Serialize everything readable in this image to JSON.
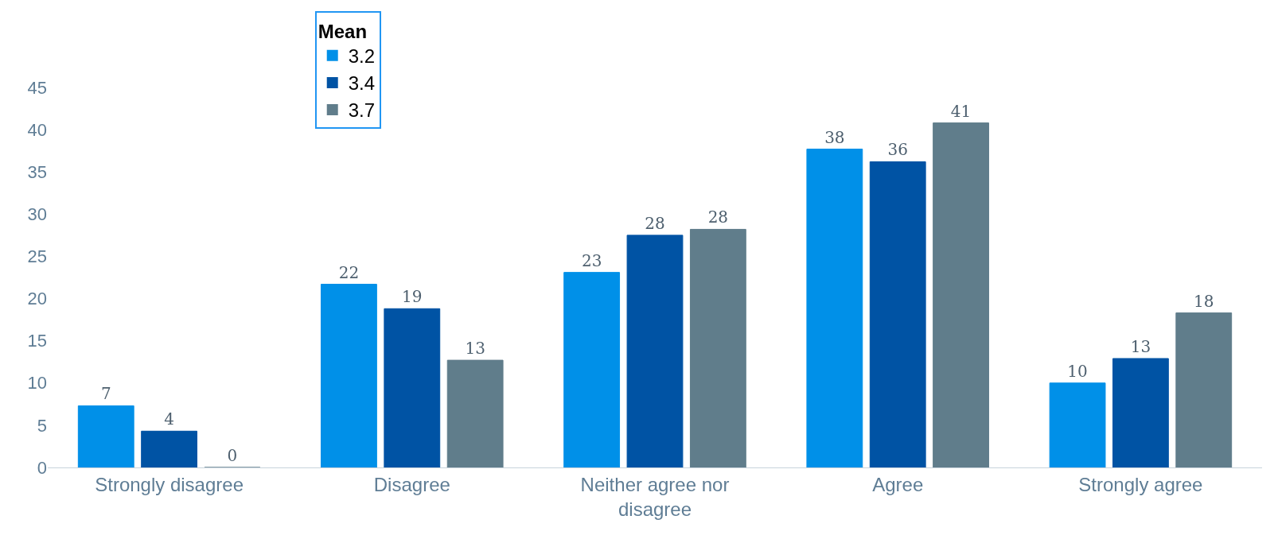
{
  "chart_data": {
    "type": "bar",
    "legend_title": "Mean",
    "legend": "top left",
    "categories": [
      "Strongly disagree",
      "Disagree",
      "Neither agree nor disagree",
      "Agree",
      "Strongly agree"
    ],
    "series": [
      {
        "name": "3.2",
        "color": "#0090e8",
        "values": [
          7.3,
          21.7,
          23.1,
          37.7,
          10.0
        ],
        "value_labels": [
          "7",
          "22",
          "23",
          "38",
          "10"
        ]
      },
      {
        "name": "3.4",
        "color": "#0053a4",
        "values": [
          4.3,
          18.8,
          27.5,
          36.2,
          12.9
        ],
        "value_labels": [
          "4",
          "19",
          "28",
          "36",
          "13"
        ]
      },
      {
        "name": "3.7",
        "color": "#607d8b",
        "values": [
          0,
          12.7,
          28.2,
          40.8,
          18.3
        ],
        "value_labels": [
          "0",
          "13",
          "28",
          "41",
          "18"
        ]
      }
    ],
    "ylim": [
      0,
      45
    ],
    "yticks": [
      0,
      5,
      10,
      15,
      20,
      25,
      30,
      35,
      40,
      45
    ]
  }
}
